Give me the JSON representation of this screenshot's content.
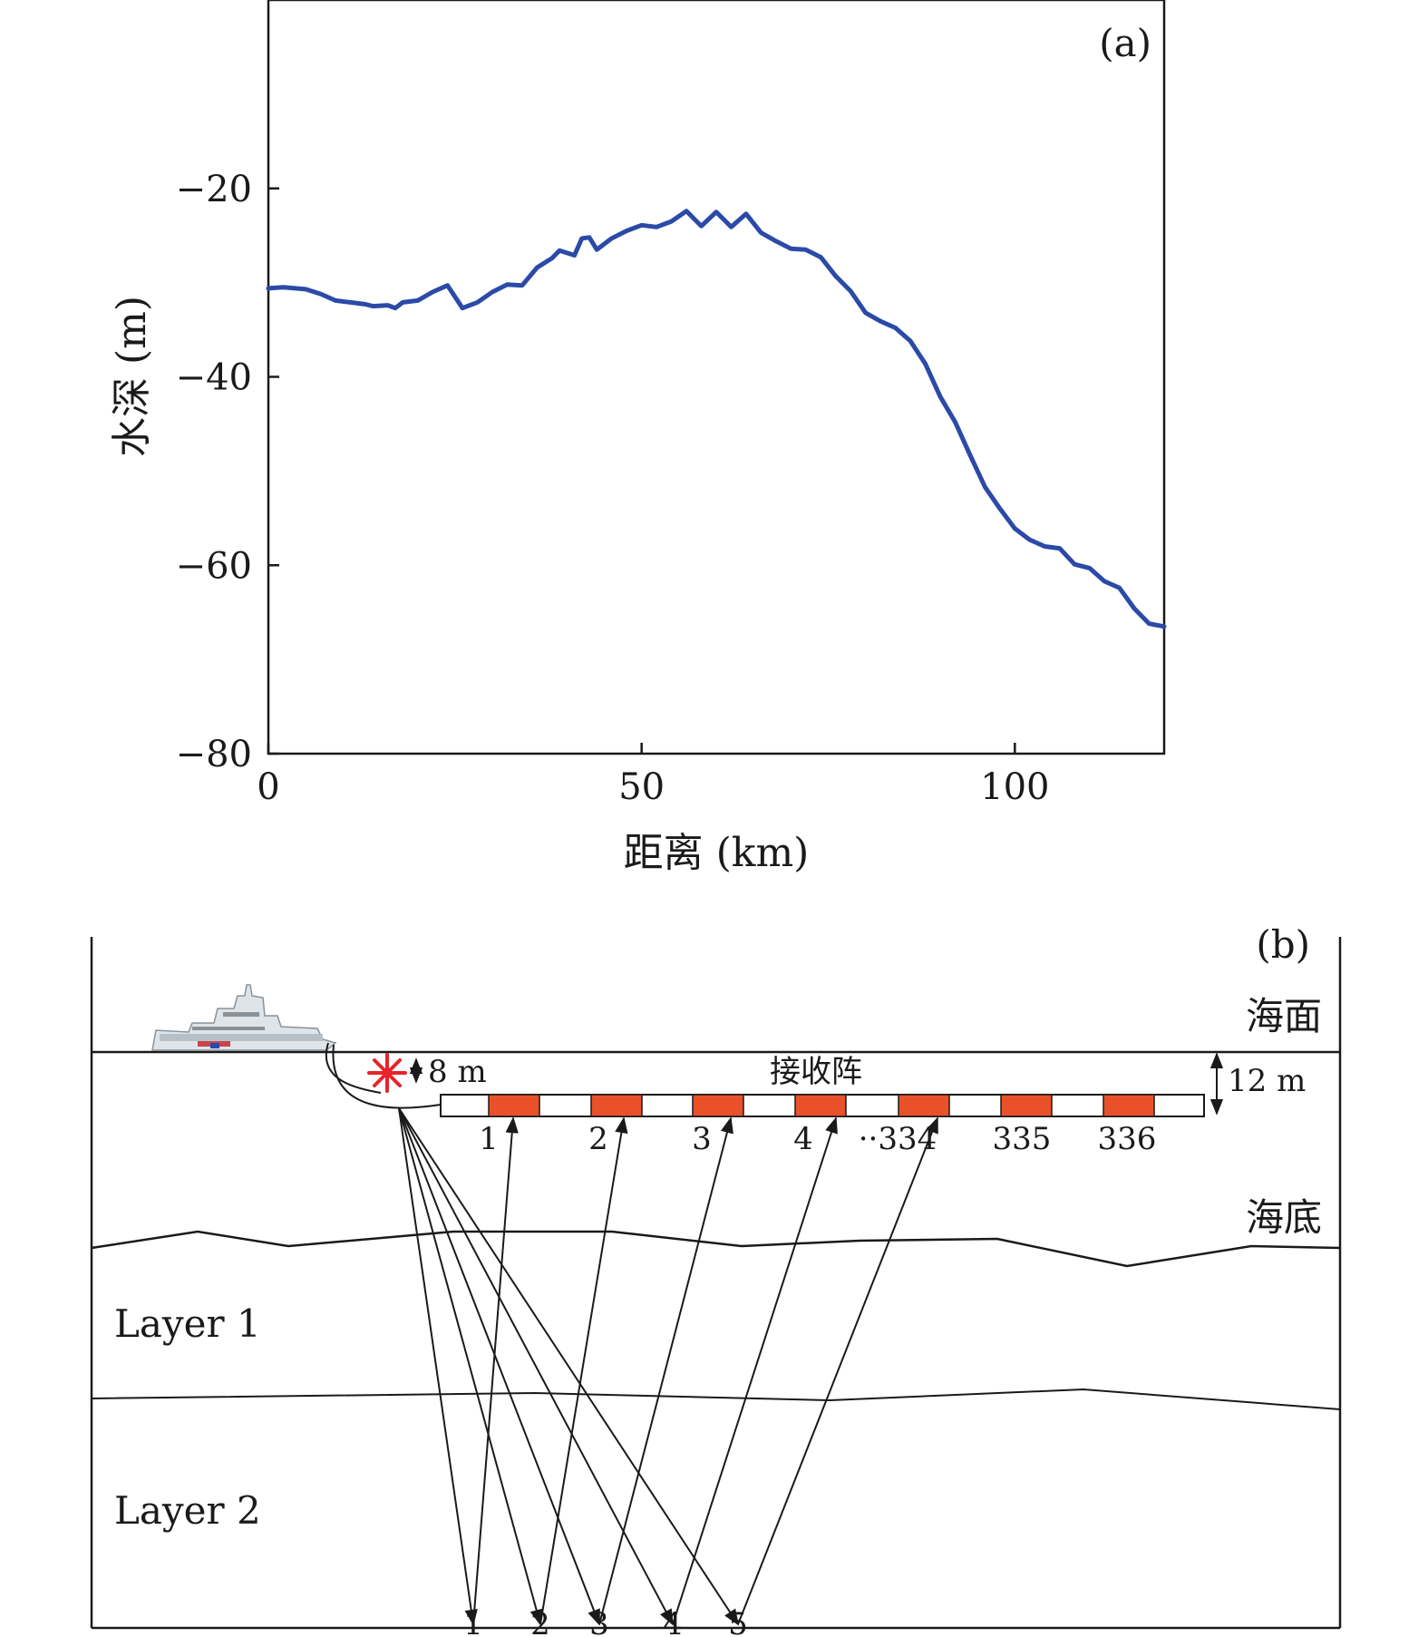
{
  "chart_data": [
    {
      "type": "line",
      "panel_label": "(a)",
      "xlabel": "距离 (km)",
      "ylabel": "水深 (m)",
      "xlim": [
        0,
        120
      ],
      "ylim": [
        -80,
        0
      ],
      "x_ticks": [
        0,
        50,
        100
      ],
      "x_tick_labels": [
        "0",
        "50",
        "100"
      ],
      "y_ticks": [
        -20,
        -40,
        -60,
        -80
      ],
      "y_tick_labels": [
        "−20",
        "−40",
        "−60",
        "−80"
      ],
      "grid": false,
      "color": "#2b4aa8",
      "x": [
        0,
        2,
        5,
        7,
        9,
        11,
        13,
        14,
        16,
        17,
        18,
        20,
        22,
        24,
        26,
        28,
        30,
        32,
        34,
        36,
        38,
        39,
        41,
        42,
        43,
        44,
        46,
        48,
        50,
        52,
        54,
        56,
        57,
        58,
        60,
        62,
        64,
        66,
        68,
        70,
        72,
        74,
        76,
        78,
        80,
        82,
        84,
        86,
        88,
        90,
        92,
        94,
        96,
        98,
        100,
        102,
        104,
        106,
        108,
        110,
        112,
        114,
        116,
        118,
        120
      ],
      "y": [
        -30.6,
        -30.5,
        -30.7,
        -31.2,
        -31.9,
        -32.1,
        -32.3,
        -32.5,
        -32.4,
        -32.7,
        -32.1,
        -31.9,
        -31.0,
        -30.3,
        -32.7,
        -32.1,
        -31.0,
        -30.2,
        -30.3,
        -28.4,
        -27.4,
        -26.6,
        -27.1,
        -25.3,
        -25.2,
        -26.5,
        -25.3,
        -24.5,
        -23.9,
        -24.1,
        -23.5,
        -22.4,
        -23.2,
        -24.0,
        -22.5,
        -24.1,
        -22.7,
        -24.7,
        -25.6,
        -26.4,
        -26.5,
        -27.3,
        -29.3,
        -30.9,
        -33.2,
        -34.1,
        -34.8,
        -36.2,
        -38.6,
        -42.1,
        -44.8,
        -48.3,
        -51.7,
        -54.0,
        -56.1,
        -57.3,
        -58.0,
        -58.2,
        -59.9,
        -60.3,
        -61.7,
        -62.4,
        -64.6,
        -66.2,
        -66.5
      ]
    },
    {
      "type": "diagram",
      "panel_label": "(b)",
      "labels": {
        "sea_surface": "海面",
        "seabed": "海底",
        "array": "接收阵",
        "layer1": "Layer 1",
        "layer2": "Layer 2",
        "source_depth": "8 m",
        "array_depth": "12 m",
        "receivers": [
          "1",
          "2",
          "3",
          "4",
          "··334",
          "335",
          "336"
        ],
        "reflections": [
          "1",
          "2",
          "3",
          "4",
          "5"
        ]
      },
      "colors": {
        "receiver": "#e9512a",
        "source": "#e8232b",
        "line": "#1a1a1a"
      }
    }
  ]
}
